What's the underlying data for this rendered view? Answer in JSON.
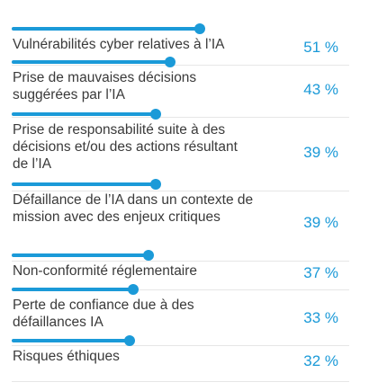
{
  "chart_data": {
    "type": "bar",
    "orientation": "horizontal",
    "value_suffix": " %",
    "colors": {
      "bar": "#1b9ad8",
      "value_text": "#1b9ad8",
      "label_text": "#3a3a3a"
    },
    "categories": [
      "Vulnérabilités cyber relatives à l’IA",
      "Prise de mauvaises décisions suggérées par l’IA",
      "Prise de responsabilité suite à des décisions et/ou des actions résultant de l’IA",
      "Défaillance de l’IA dans un contexte de mission avec des enjeux critiques",
      "Non-conformité réglementaire",
      "Perte de confiance due à des défaillances IA",
      "Risques éthiques"
    ],
    "values": [
      51,
      43,
      39,
      39,
      37,
      33,
      32
    ],
    "value_labels": [
      "51 %",
      "43 %",
      "39 %",
      "39 %",
      "37 %",
      "33 %",
      "32 %"
    ],
    "xlim": [
      0,
      100
    ]
  }
}
